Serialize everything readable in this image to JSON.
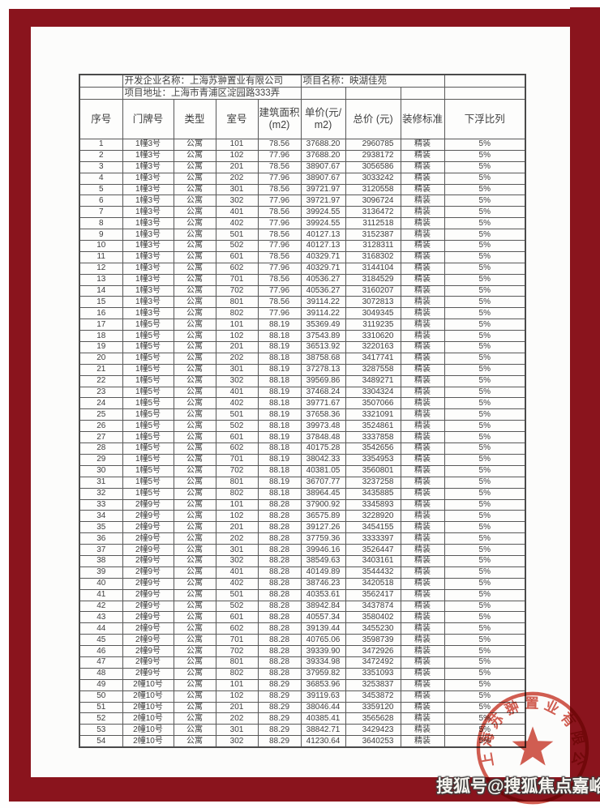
{
  "document": {
    "developer_label": "开发企业名称：上海苏翀置业有限公司",
    "project_label": "项目名称：映湖佳苑",
    "address_label": "项目地址：上海市青浦区淀园路333弄"
  },
  "table": {
    "columns": [
      "序号",
      "门牌号",
      "类型",
      "室号",
      "建筑面积(m2)",
      "单价(元/m2)",
      "总价 (元)",
      "装修标准",
      "下浮比列"
    ],
    "rows": [
      [
        "1",
        "1幢3号",
        "公寓",
        "101",
        "78.56",
        "37688.20",
        "2960785",
        "精装",
        "5%"
      ],
      [
        "2",
        "1幢3号",
        "公寓",
        "102",
        "77.96",
        "37688.20",
        "2938172",
        "精装",
        "5%"
      ],
      [
        "3",
        "1幢3号",
        "公寓",
        "201",
        "78.56",
        "38907.67",
        "3056586",
        "精装",
        "5%"
      ],
      [
        "4",
        "1幢3号",
        "公寓",
        "202",
        "77.96",
        "38907.67",
        "3033242",
        "精装",
        "5%"
      ],
      [
        "5",
        "1幢3号",
        "公寓",
        "301",
        "78.56",
        "39721.97",
        "3120558",
        "精装",
        "5%"
      ],
      [
        "6",
        "1幢3号",
        "公寓",
        "302",
        "77.96",
        "39721.97",
        "3096724",
        "精装",
        "5%"
      ],
      [
        "7",
        "1幢3号",
        "公寓",
        "401",
        "78.56",
        "39924.55",
        "3136472",
        "精装",
        "5%"
      ],
      [
        "8",
        "1幢3号",
        "公寓",
        "402",
        "77.96",
        "39924.55",
        "3112518",
        "精装",
        "5%"
      ],
      [
        "9",
        "1幢3号",
        "公寓",
        "501",
        "78.56",
        "40127.13",
        "3152387",
        "精装",
        "5%"
      ],
      [
        "10",
        "1幢3号",
        "公寓",
        "502",
        "77.96",
        "40127.13",
        "3128311",
        "精装",
        "5%"
      ],
      [
        "11",
        "1幢3号",
        "公寓",
        "601",
        "78.56",
        "40329.71",
        "3168302",
        "精装",
        "5%"
      ],
      [
        "12",
        "1幢3号",
        "公寓",
        "602",
        "77.96",
        "40329.71",
        "3144104",
        "精装",
        "5%"
      ],
      [
        "13",
        "1幢3号",
        "公寓",
        "701",
        "78.56",
        "40536.27",
        "3184529",
        "精装",
        "5%"
      ],
      [
        "14",
        "1幢3号",
        "公寓",
        "702",
        "77.96",
        "40536.27",
        "3160207",
        "精装",
        "5%"
      ],
      [
        "15",
        "1幢3号",
        "公寓",
        "801",
        "78.56",
        "39114.22",
        "3072813",
        "精装",
        "5%"
      ],
      [
        "16",
        "1幢3号",
        "公寓",
        "802",
        "77.96",
        "39114.22",
        "3049345",
        "精装",
        "5%"
      ],
      [
        "17",
        "1幢5号",
        "公寓",
        "101",
        "88.19",
        "35369.49",
        "3119235",
        "精装",
        "5%"
      ],
      [
        "18",
        "1幢5号",
        "公寓",
        "102",
        "88.18",
        "37543.89",
        "3310620",
        "精装",
        "5%"
      ],
      [
        "19",
        "1幢5号",
        "公寓",
        "201",
        "88.19",
        "36513.92",
        "3220163",
        "精装",
        "5%"
      ],
      [
        "20",
        "1幢5号",
        "公寓",
        "202",
        "88.18",
        "38758.68",
        "3417741",
        "精装",
        "5%"
      ],
      [
        "21",
        "1幢5号",
        "公寓",
        "301",
        "88.19",
        "37278.13",
        "3287558",
        "精装",
        "5%"
      ],
      [
        "22",
        "1幢5号",
        "公寓",
        "302",
        "88.18",
        "39569.86",
        "3489271",
        "精装",
        "5%"
      ],
      [
        "23",
        "1幢5号",
        "公寓",
        "401",
        "88.19",
        "37468.24",
        "3304324",
        "精装",
        "5%"
      ],
      [
        "24",
        "1幢5号",
        "公寓",
        "402",
        "88.18",
        "39771.67",
        "3507066",
        "精装",
        "5%"
      ],
      [
        "25",
        "1幢5号",
        "公寓",
        "501",
        "88.19",
        "37658.36",
        "3321091",
        "精装",
        "5%"
      ],
      [
        "26",
        "1幢5号",
        "公寓",
        "502",
        "88.18",
        "39973.48",
        "3524861",
        "精装",
        "5%"
      ],
      [
        "27",
        "1幢5号",
        "公寓",
        "601",
        "88.19",
        "37848.48",
        "3337858",
        "精装",
        "5%"
      ],
      [
        "28",
        "1幢5号",
        "公寓",
        "602",
        "88.18",
        "40175.28",
        "3542656",
        "精装",
        "5%"
      ],
      [
        "29",
        "1幢5号",
        "公寓",
        "701",
        "88.19",
        "38042.33",
        "3354953",
        "精装",
        "5%"
      ],
      [
        "30",
        "1幢5号",
        "公寓",
        "702",
        "88.18",
        "40381.05",
        "3560801",
        "精装",
        "5%"
      ],
      [
        "31",
        "1幢5号",
        "公寓",
        "801",
        "88.19",
        "36707.77",
        "3237258",
        "精装",
        "5%"
      ],
      [
        "32",
        "1幢5号",
        "公寓",
        "802",
        "88.18",
        "38964.45",
        "3435885",
        "精装",
        "5%"
      ],
      [
        "33",
        "2幢9号",
        "公寓",
        "101",
        "88.28",
        "37900.92",
        "3345893",
        "精装",
        "5%"
      ],
      [
        "34",
        "2幢9号",
        "公寓",
        "102",
        "88.28",
        "36575.89",
        "3228920",
        "精装",
        "5%"
      ],
      [
        "35",
        "2幢9号",
        "公寓",
        "201",
        "88.28",
        "39127.26",
        "3454155",
        "精装",
        "5%"
      ],
      [
        "36",
        "2幢9号",
        "公寓",
        "202",
        "88.28",
        "37759.36",
        "3333397",
        "精装",
        "5%"
      ],
      [
        "37",
        "2幢9号",
        "公寓",
        "301",
        "88.28",
        "39946.16",
        "3526447",
        "精装",
        "5%"
      ],
      [
        "38",
        "2幢9号",
        "公寓",
        "302",
        "88.28",
        "38549.63",
        "3403161",
        "精装",
        "5%"
      ],
      [
        "39",
        "2幢9号",
        "公寓",
        "401",
        "88.28",
        "40149.89",
        "3544432",
        "精装",
        "5%"
      ],
      [
        "40",
        "2幢9号",
        "公寓",
        "402",
        "88.28",
        "38746.23",
        "3420518",
        "精装",
        "5%"
      ],
      [
        "41",
        "2幢9号",
        "公寓",
        "501",
        "88.28",
        "40353.61",
        "3562417",
        "精装",
        "5%"
      ],
      [
        "42",
        "2幢9号",
        "公寓",
        "502",
        "88.28",
        "38942.84",
        "3437874",
        "精装",
        "5%"
      ],
      [
        "43",
        "2幢9号",
        "公寓",
        "601",
        "88.28",
        "40557.34",
        "3580402",
        "精装",
        "5%"
      ],
      [
        "44",
        "2幢9号",
        "公寓",
        "602",
        "88.28",
        "39139.44",
        "3455230",
        "精装",
        "5%"
      ],
      [
        "45",
        "2幢9号",
        "公寓",
        "701",
        "88.28",
        "40765.06",
        "3598739",
        "精装",
        "5%"
      ],
      [
        "46",
        "2幢9号",
        "公寓",
        "702",
        "88.28",
        "39339.90",
        "3472926",
        "精装",
        "5%"
      ],
      [
        "47",
        "2幢9号",
        "公寓",
        "801",
        "88.28",
        "39334.98",
        "3472492",
        "精装",
        "5%"
      ],
      [
        "48",
        "2幢9号",
        "公寓",
        "802",
        "88.28",
        "37959.82",
        "3351093",
        "精装",
        "5%"
      ],
      [
        "49",
        "2幢10号",
        "公寓",
        "101",
        "88.29",
        "36853.96",
        "3253837",
        "精装",
        "5%"
      ],
      [
        "50",
        "2幢10号",
        "公寓",
        "102",
        "88.29",
        "39119.63",
        "3453872",
        "精装",
        "5%"
      ],
      [
        "51",
        "2幢10号",
        "公寓",
        "201",
        "88.29",
        "38046.44",
        "3359120",
        "精装",
        "5%"
      ],
      [
        "52",
        "2幢10号",
        "公寓",
        "202",
        "88.29",
        "40385.41",
        "3565628",
        "精装",
        "5%"
      ],
      [
        "53",
        "2幢10号",
        "公寓",
        "301",
        "88.29",
        "38842.71",
        "3429423",
        "精装",
        "5%"
      ],
      [
        "54",
        "2幢10号",
        "公寓",
        "302",
        "88.29",
        "41230.64",
        "3640253",
        "精装",
        "5%"
      ]
    ]
  },
  "stamp": {
    "company": "上海苏翀置业有限公司"
  },
  "watermark": {
    "text": "搜狐号@搜狐焦点嘉峪关站"
  },
  "colors": {
    "frame": "#8a141d",
    "stamp": "#c93a2b"
  }
}
